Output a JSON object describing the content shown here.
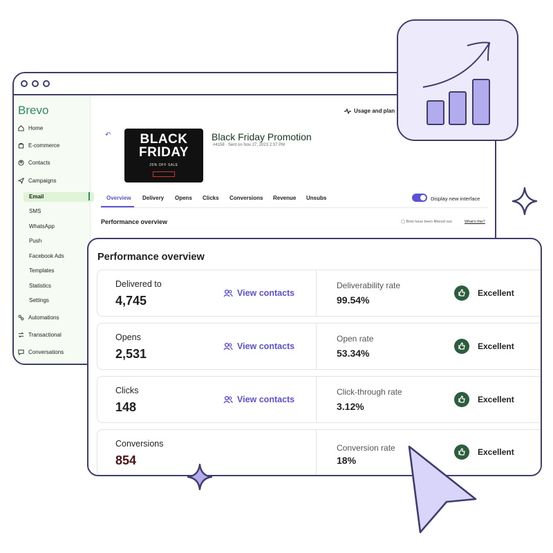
{
  "app": {
    "brand": "Brevo",
    "usage_label": "Usage and plan"
  },
  "sidebar": {
    "items": [
      {
        "label": "Home",
        "icon": "home-icon"
      },
      {
        "label": "E-commerce",
        "icon": "shopping-bag-icon"
      },
      {
        "label": "Contacts",
        "icon": "contacts-icon"
      },
      {
        "label": "Campaigns",
        "icon": "send-icon"
      },
      {
        "label": "Automations",
        "icon": "automation-icon"
      },
      {
        "label": "Transactional",
        "icon": "transactional-icon"
      },
      {
        "label": "Conversations",
        "icon": "chat-icon"
      }
    ],
    "campaign_subitems": [
      "Email",
      "SMS",
      "WhatsApp",
      "Push",
      "Facebook Ads",
      "Templates",
      "Statistics",
      "Settings"
    ],
    "active_subitem": "Email"
  },
  "campaign": {
    "title": "Black Friday Promotion",
    "meta": "#4158 · Sent on Nov 27, 2023 2:37 PM",
    "thumbnail": {
      "line1": "BLACK",
      "line2": "FRIDAY",
      "offer": "25% OFF SALE"
    }
  },
  "tabs": [
    "Overview",
    "Delivery",
    "Opens",
    "Clicks",
    "Conversions",
    "Revenue",
    "Unsubs"
  ],
  "active_tab": "Overview",
  "toggle": {
    "label": "Display new interface",
    "on": true
  },
  "overview_header": {
    "title": "Performance overview",
    "bots_note": "Bots have been filtered out.",
    "whats_this": "What's this?"
  },
  "panel": {
    "title": "Performance overview",
    "rows": [
      {
        "label": "Delivered to",
        "value": "4,745",
        "link": "View contacts",
        "rate_label": "Deliverability rate",
        "rate_value": "99.54%",
        "status": "Excellent"
      },
      {
        "label": "Opens",
        "value": "2,531",
        "link": "View contacts",
        "rate_label": "Open rate",
        "rate_value": "53.34%",
        "status": "Excellent"
      },
      {
        "label": "Clicks",
        "value": "148",
        "link": "View contacts",
        "rate_label": "Click-through rate",
        "rate_value": "3.12%",
        "status": "Excellent"
      },
      {
        "label": "Conversions",
        "value": "854",
        "link": "",
        "rate_label": "Conversion rate",
        "rate_value": "18%",
        "status": "Excellent"
      }
    ]
  },
  "colors": {
    "accent": "#5b52d6",
    "outline": "#3f3c6e",
    "brand_green": "#2f8a62",
    "status_green": "#2c5e3e",
    "tile_bg": "#eceafb"
  }
}
